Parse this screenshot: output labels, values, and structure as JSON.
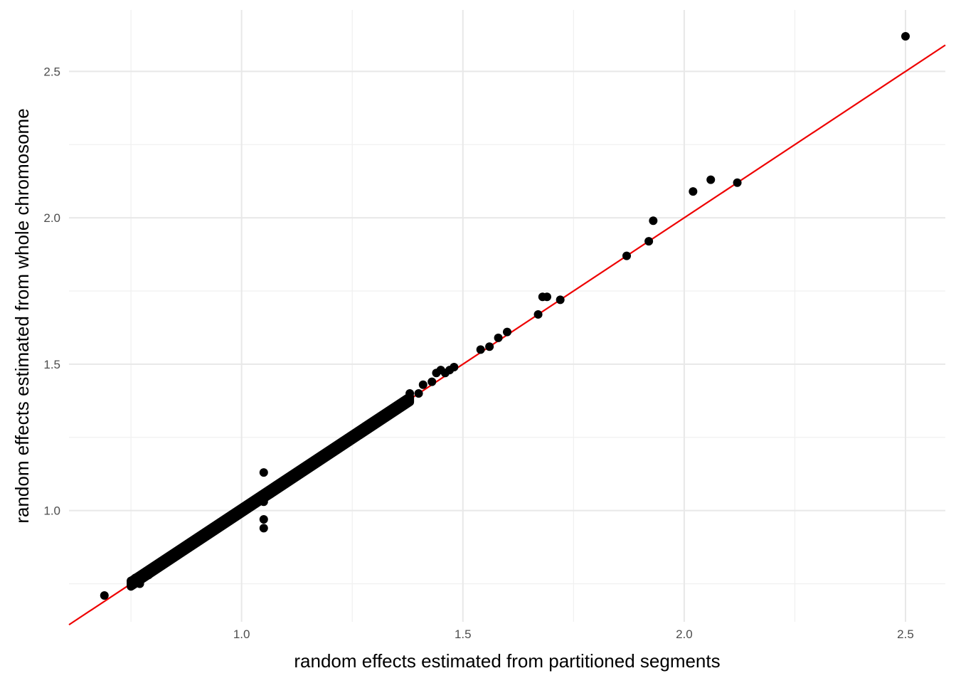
{
  "chart_data": {
    "type": "scatter",
    "title": "",
    "xlabel": "random effects estimated from partitioned segments",
    "ylabel": "random effects estimated from whole chromosome",
    "xlim": [
      0.61,
      2.59
    ],
    "ylim": [
      0.62,
      2.71
    ],
    "x_ticks": [
      1.0,
      1.5,
      2.0,
      2.5
    ],
    "x_tick_labels": [
      "1.0",
      "1.5",
      "2.0",
      "2.5"
    ],
    "x_minor_ticks": [
      0.75,
      1.25,
      1.75,
      2.25
    ],
    "y_ticks": [
      1.0,
      1.5,
      2.0,
      2.5
    ],
    "y_tick_labels": [
      "1.0",
      "1.5",
      "2.0",
      "2.5"
    ],
    "y_minor_ticks": [
      0.75,
      1.25,
      1.75,
      2.25
    ],
    "grid": true,
    "legend": "none",
    "reference_line": {
      "type": "identity",
      "slope": 1,
      "intercept": 0,
      "color": "#ee0000"
    },
    "point_color": "#000000",
    "dense_band": {
      "x_start": 0.75,
      "x_end": 1.38,
      "width": 0.018
    },
    "points": [
      {
        "x": 0.69,
        "y": 0.71
      },
      {
        "x": 0.75,
        "y": 0.76
      },
      {
        "x": 0.76,
        "y": 0.77
      },
      {
        "x": 0.77,
        "y": 0.75
      },
      {
        "x": 0.79,
        "y": 0.78
      },
      {
        "x": 1.05,
        "y": 1.13
      },
      {
        "x": 1.05,
        "y": 1.03
      },
      {
        "x": 1.05,
        "y": 0.97
      },
      {
        "x": 1.05,
        "y": 0.94
      },
      {
        "x": 1.38,
        "y": 1.4
      },
      {
        "x": 1.4,
        "y": 1.4
      },
      {
        "x": 1.41,
        "y": 1.43
      },
      {
        "x": 1.43,
        "y": 1.44
      },
      {
        "x": 1.44,
        "y": 1.47
      },
      {
        "x": 1.45,
        "y": 1.48
      },
      {
        "x": 1.46,
        "y": 1.47
      },
      {
        "x": 1.47,
        "y": 1.48
      },
      {
        "x": 1.48,
        "y": 1.49
      },
      {
        "x": 1.54,
        "y": 1.55
      },
      {
        "x": 1.56,
        "y": 1.56
      },
      {
        "x": 1.58,
        "y": 1.59
      },
      {
        "x": 1.6,
        "y": 1.61
      },
      {
        "x": 1.67,
        "y": 1.67
      },
      {
        "x": 1.68,
        "y": 1.73
      },
      {
        "x": 1.69,
        "y": 1.73
      },
      {
        "x": 1.72,
        "y": 1.72
      },
      {
        "x": 1.87,
        "y": 1.87
      },
      {
        "x": 1.92,
        "y": 1.92
      },
      {
        "x": 1.93,
        "y": 1.99
      },
      {
        "x": 2.02,
        "y": 2.09
      },
      {
        "x": 2.06,
        "y": 2.13
      },
      {
        "x": 2.12,
        "y": 2.12
      },
      {
        "x": 2.5,
        "y": 2.62
      }
    ]
  }
}
